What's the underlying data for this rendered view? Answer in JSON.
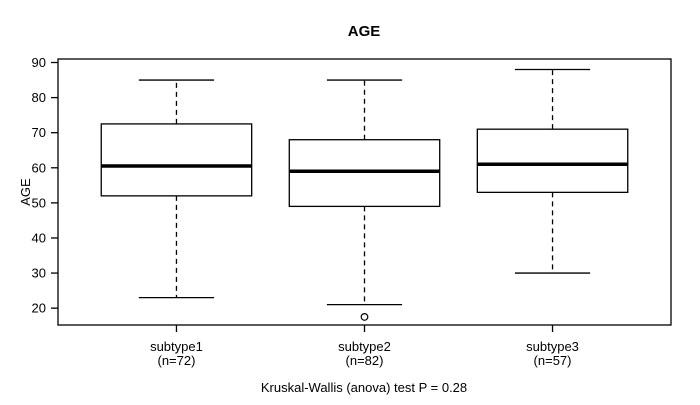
{
  "title": "AGE",
  "footer": "Kruskal-Wallis (anova) test P = 0.28",
  "chart_data": {
    "type": "boxplot",
    "title": "AGE",
    "xlabel": "",
    "ylabel": "AGE",
    "ylim": [
      15.2,
      91.0
    ],
    "xlim": [
      0.37,
      3.63
    ],
    "y_ticks": [
      20,
      30,
      40,
      50,
      60,
      70,
      80,
      90
    ],
    "grid": false,
    "legend": "none",
    "annotation": "Kruskal-Wallis (anova) test P = 0.28",
    "box_width": 0.8,
    "cap_width": 0.4,
    "groups": [
      {
        "label": "subtype1",
        "sublabel": "(n=72)",
        "n": 72,
        "position": 1,
        "whisker_low": 23,
        "q1": 52,
        "median": 60.5,
        "q3": 72.5,
        "whisker_high": 85,
        "outliers": []
      },
      {
        "label": "subtype2",
        "sublabel": "(n=82)",
        "n": 82,
        "position": 2,
        "whisker_low": 21,
        "q1": 49,
        "median": 59,
        "q3": 68,
        "whisker_high": 85,
        "outliers": [
          17.5
        ]
      },
      {
        "label": "subtype3",
        "sublabel": "(n=57)",
        "n": 57,
        "position": 3,
        "whisker_low": 30,
        "q1": 53,
        "median": 61,
        "q3": 71,
        "whisker_high": 88,
        "outliers": []
      }
    ],
    "colors": {
      "stroke": "#000000",
      "box_fill": "#ffffff",
      "median": "#000000",
      "background": "#ffffff"
    }
  }
}
